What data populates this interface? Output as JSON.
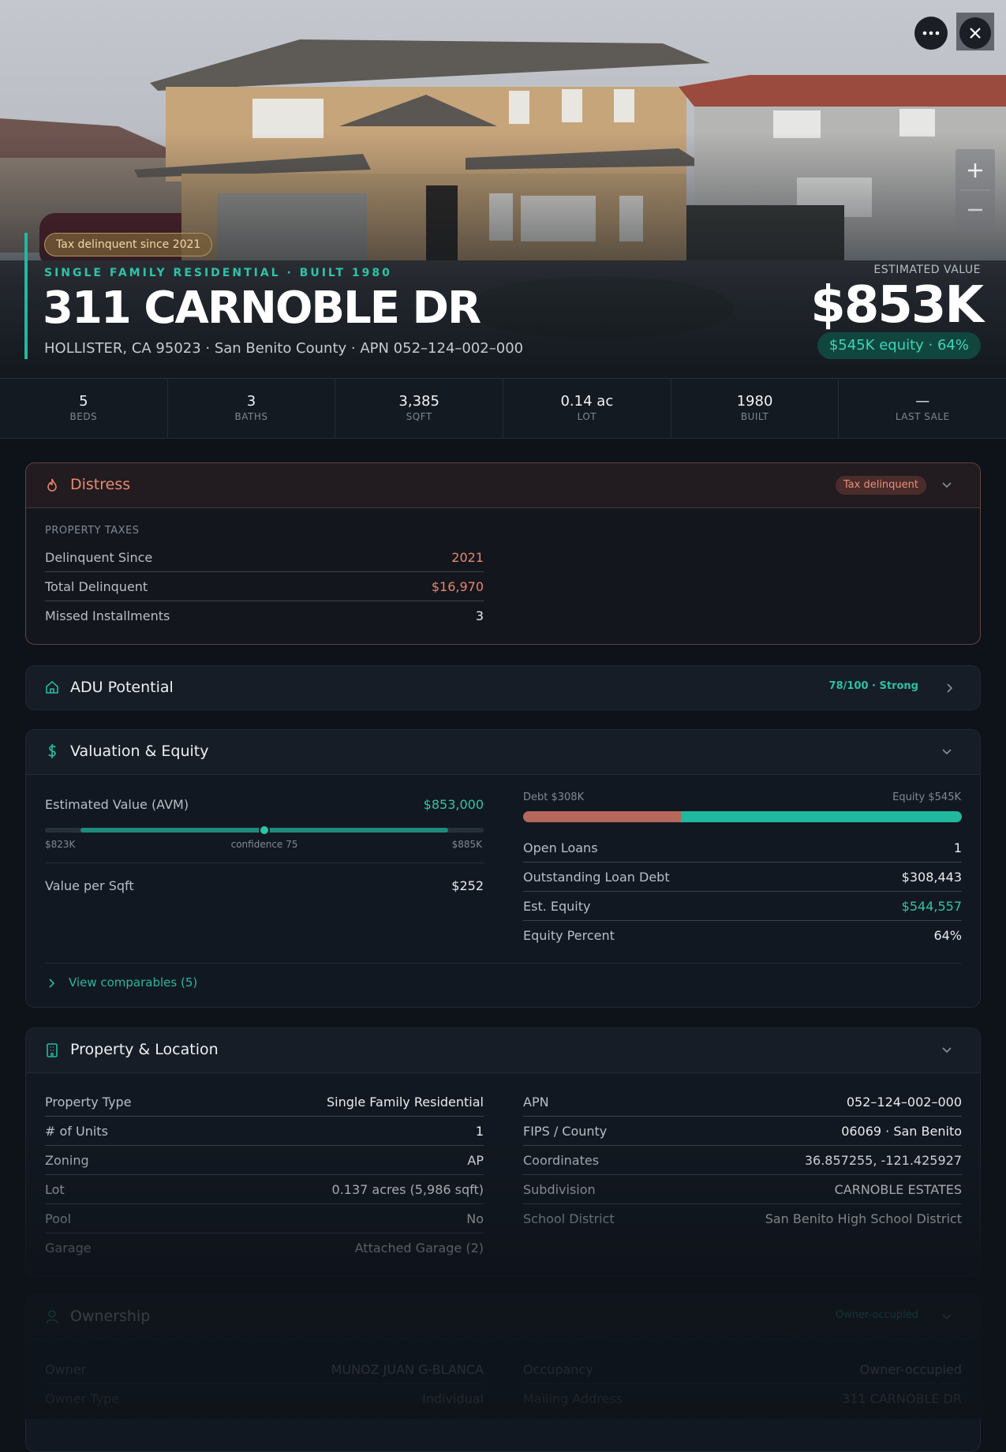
{
  "header": {
    "badge": "Tax delinquent since 2021",
    "subtitle": "SINGLE FAMILY RESIDENTIAL · BUILT 1980",
    "title": "311 CARNOBLE DR",
    "address": "HOLLISTER, CA 95023 · San Benito County · APN 052–124–002–000",
    "estimate_label": "ESTIMATED VALUE",
    "estimate": "$853K",
    "equity_pill": "$545K equity · 64%"
  },
  "stats": [
    {
      "value": "5",
      "label": "BEDS"
    },
    {
      "value": "3",
      "label": "BATHS"
    },
    {
      "value": "3,385",
      "label": "SQFT"
    },
    {
      "value": "0.14 ac",
      "label": "LOT"
    },
    {
      "value": "1980",
      "label": "BUILT"
    },
    {
      "value": "—",
      "label": "LAST SALE"
    }
  ],
  "distress": {
    "title": "Distress",
    "tag": "Tax delinquent",
    "section": "PROPERTY TAXES",
    "rows": [
      {
        "label": "Delinquent Since",
        "value": "2021"
      },
      {
        "label": "Total Delinquent",
        "value": "$16,970"
      },
      {
        "label": "Missed Installments",
        "value": "3"
      }
    ]
  },
  "adu": {
    "title": "ADU Potential",
    "score": "78/100 · Strong"
  },
  "valuation": {
    "title": "Valuation & Equity",
    "avm_label": "Estimated Value (AVM)",
    "avm": "$853,000",
    "range_low": "$823K",
    "confidence": "confidence 75",
    "range_high": "$885K",
    "rows": [
      {
        "label": "Value per Sqft",
        "value": "$252"
      }
    ],
    "debt_label": "Debt $308K",
    "equity_label": "Equity $545K",
    "right_rows": [
      {
        "label": "Open Loans",
        "value": "1"
      },
      {
        "label": "Outstanding Loan Debt",
        "value": "$308,443"
      },
      {
        "label": "Est. Equity",
        "value": "$544,557"
      },
      {
        "label": "Equity Percent",
        "value": "64%"
      }
    ],
    "comparables": "View comparables (5)"
  },
  "property": {
    "title": "Property & Location",
    "left_rows": [
      {
        "label": "Property Type",
        "value": "Single Family Residential"
      },
      {
        "label": "# of Units",
        "value": "1"
      },
      {
        "label": "Zoning",
        "value": "AP"
      },
      {
        "label": "Lot",
        "value": "0.137 acres (5,986 sqft)"
      },
      {
        "label": "Pool",
        "value": "No"
      },
      {
        "label": "Garage",
        "value": "Attached Garage (2)"
      }
    ],
    "right_rows": [
      {
        "label": "APN",
        "value": "052–124–002–000"
      },
      {
        "label": "FIPS / County",
        "value": "06069 · San Benito"
      },
      {
        "label": "Coordinates",
        "value": "36.857255, -121.425927"
      },
      {
        "label": "Subdivision",
        "value": "CARNOBLE ESTATES"
      },
      {
        "label": "School District",
        "value": "San Benito High School District"
      }
    ]
  },
  "ownership": {
    "title": "Ownership",
    "tag": "Owner-occupied",
    "left_rows": [
      {
        "label": "Owner",
        "value": "MUNOZ JUAN G-BLANCA"
      },
      {
        "label": "Owner Type",
        "value": "Individual"
      }
    ],
    "right_rows": [
      {
        "label": "Occupancy",
        "value": "Owner-occupied"
      },
      {
        "label": "Mailing Address",
        "value": "311 CARNOBLE DR"
      }
    ]
  }
}
